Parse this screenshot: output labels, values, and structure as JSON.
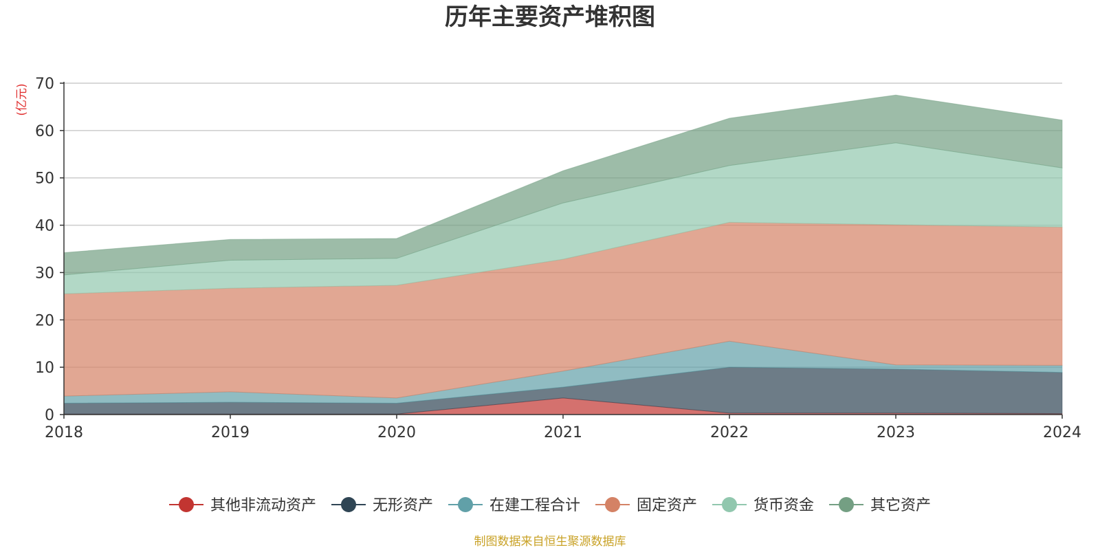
{
  "chart_data": {
    "type": "area",
    "stacked": true,
    "title": "历年主要资产堆积图",
    "unit": "(亿元)",
    "source": "制图数据来自恒生聚源数据库",
    "x": [
      "2018",
      "2019",
      "2020",
      "2021",
      "2022",
      "2023",
      "2024"
    ],
    "ylim": [
      0,
      70
    ],
    "yticks": [
      0,
      10,
      20,
      30,
      40,
      50,
      60,
      70
    ],
    "grid": true,
    "legend_position": "bottom",
    "series": [
      {
        "name": "其他非流动资产",
        "color": "#c23531",
        "values": [
          0.1,
          0.1,
          0.1,
          3.5,
          0.3,
          0.3,
          0.2
        ]
      },
      {
        "name": "无形资产",
        "color": "#2f4554",
        "values": [
          2.3,
          2.5,
          2.3,
          2.3,
          9.7,
          9.3,
          8.7
        ]
      },
      {
        "name": "在建工程合计",
        "color": "#61a0a8",
        "values": [
          1.5,
          2.2,
          1.1,
          3.4,
          5.5,
          0.9,
          1.5
        ]
      },
      {
        "name": "固定资产",
        "color": "#d48265",
        "values": [
          21.6,
          21.9,
          23.8,
          23.6,
          25.1,
          29.6,
          29.2
        ]
      },
      {
        "name": "货币资金",
        "color": "#91c7ae",
        "values": [
          4.0,
          5.9,
          5.7,
          11.9,
          12.0,
          17.3,
          12.5
        ]
      },
      {
        "name": "其它资产",
        "color": "#749f83",
        "values": [
          4.7,
          4.4,
          4.2,
          6.8,
          10.0,
          10.1,
          10.1
        ]
      }
    ]
  }
}
